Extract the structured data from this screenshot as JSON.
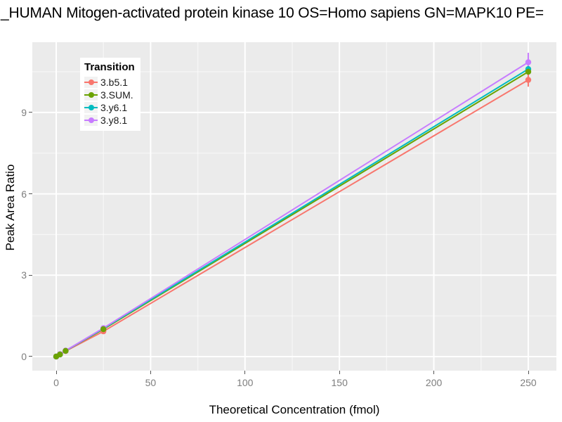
{
  "title": {
    "text": "_HUMAN Mitogen-activated protein kinase 10 OS=Homo sapiens GN=MAPK10 PE="
  },
  "colors": {
    "panel_bg": "#EBEBEB",
    "grid_major": "#FFFFFF",
    "grid_minor": "rgba(255,255,255,0.55)",
    "tick_text": "#7e7e7e",
    "tick_mark": "#555555",
    "legend_key_bg": "#F2F2F2"
  },
  "chart_data": {
    "type": "line",
    "title": "_HUMAN Mitogen-activated protein kinase 10 OS=Homo sapiens GN=MAPK10 PE=",
    "xlabel": "Theoretical Concentration (fmol)",
    "ylabel": "Peak Area Ratio",
    "legend_title": "Transition",
    "legend_position": "top-left-inside",
    "grid": true,
    "xlim": [
      -12.65,
      264.9
    ],
    "ylim": [
      -0.52,
      11.59
    ],
    "x_ticks": [
      0,
      50,
      100,
      150,
      200,
      250
    ],
    "y_ticks": [
      0,
      3,
      6,
      9
    ],
    "x_minor": [
      25,
      75,
      125,
      175,
      225
    ],
    "y_minor": [
      1.5,
      4.5,
      7.5,
      10.5
    ],
    "point_draw_order": [
      0,
      2,
      3,
      1
    ],
    "series": [
      {
        "name": "3.b5.1",
        "color": "#F8766D",
        "x": [
          0,
          2,
          5,
          25,
          250
        ],
        "y": [
          0,
          0.08,
          0.2,
          0.93,
          10.2
        ],
        "error_bars": [
          {
            "x": 250,
            "y_min": 9.95,
            "y_max": 10.45
          }
        ]
      },
      {
        "name": "3.SUM.",
        "color": "#6BA303",
        "x": [
          0,
          2,
          5,
          25,
          250
        ],
        "y": [
          0,
          0.08,
          0.21,
          1.01,
          10.5
        ],
        "error_bars": []
      },
      {
        "name": "3.y6.1",
        "color": "#00BCC0",
        "x": [
          0,
          2,
          5,
          25,
          250
        ],
        "y": [
          0,
          0.08,
          0.21,
          1.03,
          10.6
        ],
        "error_bars": []
      },
      {
        "name": "3.y8.1",
        "color": "#C77CFF",
        "x": [
          0,
          2,
          5,
          25,
          250
        ],
        "y": [
          0,
          0.09,
          0.22,
          1.05,
          10.85
        ],
        "error_bars": [
          {
            "x": 250,
            "y_min": 10.5,
            "y_max": 11.2
          }
        ]
      }
    ]
  }
}
